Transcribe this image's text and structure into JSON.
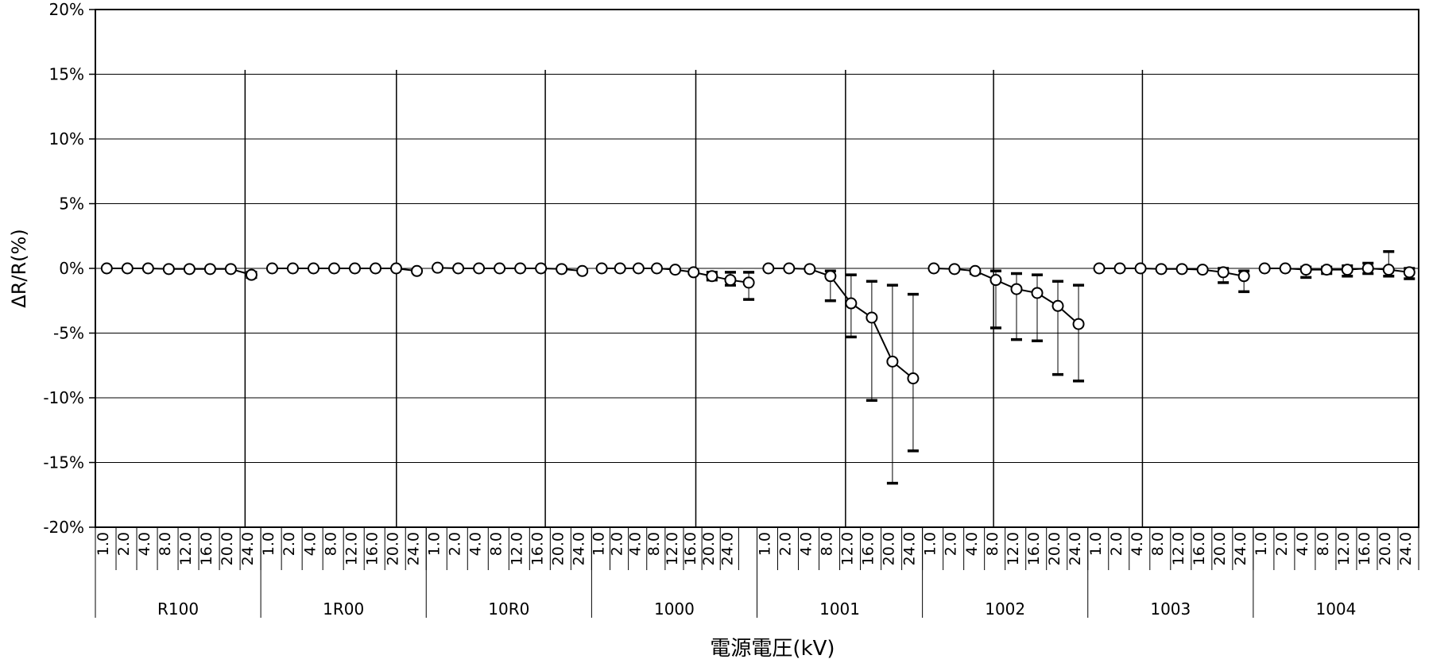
{
  "chart_data": {
    "type": "line",
    "ylabel": "ΔR/R(%)",
    "xlabel": "電源電圧(kV)",
    "ylim": [
      -20,
      20
    ],
    "yticks": [
      20,
      15,
      10,
      5,
      0,
      -5,
      -10,
      -15,
      -20
    ],
    "ytick_labels": [
      "20%",
      "15%",
      "10%",
      "5%",
      "0%",
      "-5%",
      "-10%",
      "-15%",
      "-20%"
    ],
    "grid": true,
    "legend": "none",
    "marker": "open-circle",
    "voltages": [
      "1.0",
      "2.0",
      "4.0",
      "8.0",
      "12.0",
      "16.0",
      "20.0",
      "24.0"
    ],
    "groups": [
      {
        "name": "R100",
        "values": [
          0.0,
          0.0,
          0.0,
          -0.05,
          -0.05,
          -0.05,
          -0.05,
          -0.5
        ],
        "err_low": [
          0.0,
          0.0,
          0.0,
          0.0,
          0.0,
          0.0,
          0.0,
          0.2
        ],
        "err_high": [
          0.0,
          0.0,
          0.0,
          0.0,
          0.0,
          0.0,
          0.0,
          0.2
        ]
      },
      {
        "name": "1R00",
        "values": [
          0.0,
          0.0,
          0.0,
          0.0,
          0.0,
          0.0,
          0.0,
          -0.2
        ],
        "err_low": [
          0.0,
          0.0,
          0.0,
          0.0,
          0.0,
          0.0,
          0.0,
          0.1
        ],
        "err_high": [
          0.0,
          0.0,
          0.0,
          0.0,
          0.0,
          0.0,
          0.0,
          0.1
        ]
      },
      {
        "name": "10R0",
        "values": [
          0.05,
          0.0,
          0.0,
          0.0,
          0.0,
          0.0,
          -0.05,
          -0.2
        ],
        "err_low": [
          0.0,
          0.0,
          0.0,
          0.0,
          0.0,
          0.0,
          0.0,
          0.1
        ],
        "err_high": [
          0.0,
          0.0,
          0.0,
          0.0,
          0.0,
          0.0,
          0.0,
          0.1
        ]
      },
      {
        "name": "1000",
        "values": [
          0.0,
          0.0,
          0.0,
          0.0,
          -0.1,
          -0.3,
          -0.6,
          -0.9,
          -1.1
        ],
        "err_low": [
          0.0,
          0.0,
          0.0,
          0.0,
          0.0,
          0.1,
          0.3,
          0.4,
          1.3
        ],
        "err_high": [
          0.0,
          0.0,
          0.0,
          0.0,
          0.0,
          0.1,
          0.3,
          0.6,
          0.8
        ],
        "categories": [
          "1.0",
          "2.0",
          "4.0",
          "8.0",
          "12.0",
          "16.0",
          "20.0",
          "24.0",
          ""
        ]
      },
      {
        "name": "1001",
        "values": [
          0.0,
          0.0,
          -0.05,
          -0.6,
          -2.7,
          -3.8,
          -7.2,
          -8.5
        ],
        "err_low": [
          0.0,
          0.0,
          0.0,
          1.9,
          2.6,
          6.4,
          9.4,
          5.6
        ],
        "err_high": [
          0.0,
          0.0,
          0.0,
          0.4,
          2.2,
          2.8,
          5.9,
          6.5
        ]
      },
      {
        "name": "1002",
        "values": [
          0.0,
          -0.05,
          -0.2,
          -0.9,
          -1.6,
          -1.9,
          -2.9,
          -4.3
        ],
        "err_low": [
          0.0,
          0.0,
          0.2,
          3.7,
          3.9,
          3.7,
          5.3,
          4.4
        ],
        "err_high": [
          0.0,
          0.0,
          0.1,
          0.7,
          1.2,
          1.4,
          1.9,
          3.0
        ]
      },
      {
        "name": "1003",
        "values": [
          0.0,
          0.0,
          0.0,
          -0.05,
          -0.05,
          -0.1,
          -0.3,
          -0.6
        ],
        "err_low": [
          0.0,
          0.0,
          0.0,
          0.0,
          0.0,
          0.0,
          0.8,
          1.2
        ],
        "err_high": [
          0.0,
          0.0,
          0.0,
          0.0,
          0.0,
          0.0,
          0.3,
          0.4
        ]
      },
      {
        "name": "1004",
        "values": [
          0.0,
          0.0,
          -0.1,
          -0.1,
          -0.1,
          0.0,
          -0.1,
          -0.3
        ],
        "err_low": [
          0.0,
          0.0,
          0.6,
          0.3,
          0.5,
          0.4,
          0.5,
          0.5
        ],
        "err_high": [
          0.0,
          0.0,
          0.2,
          0.2,
          0.3,
          0.4,
          1.4,
          0.3
        ]
      }
    ]
  }
}
